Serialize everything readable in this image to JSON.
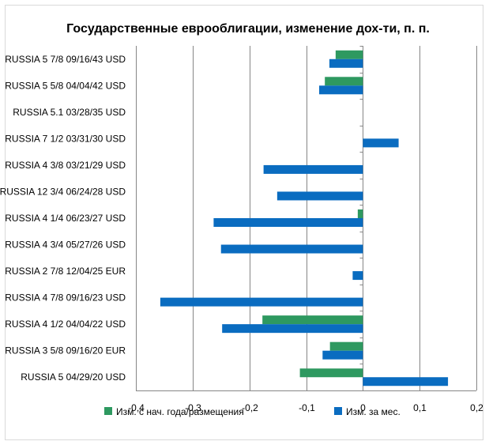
{
  "chart_data": {
    "type": "bar",
    "orientation": "horizontal",
    "title": "Государственные еврооблигации, изменение дох-ти, п. п.",
    "categories": [
      "RUSSIA 5 7/8 09/16/43 USD",
      "RUSSIA 5 5/8 04/04/42 USD",
      "RUSSIA 5.1 03/28/35 USD",
      "RUSSIA 7 1/2 03/31/30 USD",
      "RUSSIA 4 3/8 03/21/29 USD",
      "RUSSIA 12 3/4 06/24/28 USD",
      "RUSSIA 4 1/4 06/23/27 USD",
      "RUSSIA 4 3/4 05/27/26 USD",
      "RUSSIA 2 7/8 12/04/25 EUR",
      "RUSSIA 4 7/8 09/16/23 USD",
      "RUSSIA 4 1/2 04/04/22 USD",
      "RUSSIA 3 5/8 09/16/20 EUR",
      "RUSSIA 5 04/29/20 USD"
    ],
    "series": [
      {
        "name": "Изм. с нач. года/размещения",
        "color": "#2e9960",
        "values": [
          -0.048,
          -0.067,
          0.0,
          0.0,
          0.0,
          0.0,
          -0.009,
          0.0,
          0.0,
          0.0,
          -0.177,
          -0.058,
          -0.111
        ]
      },
      {
        "name": "Изм. за мес.",
        "color": "#0a6cc0",
        "values": [
          -0.059,
          -0.077,
          0.0,
          0.063,
          -0.175,
          -0.151,
          -0.263,
          -0.25,
          -0.018,
          -0.357,
          -0.248,
          -0.071,
          0.15
        ]
      }
    ],
    "xlim": [
      -0.4,
      0.2
    ],
    "xticks": [
      "-0,4",
      "-0,3",
      "-0,2",
      "-0,1",
      "0",
      "0,1",
      "0,2"
    ],
    "xtick_values": [
      -0.4,
      -0.3,
      -0.2,
      -0.1,
      0,
      0.1,
      0.2
    ],
    "grid": "vertical",
    "legend_position": "bottom",
    "gridline_color": "#868686"
  }
}
